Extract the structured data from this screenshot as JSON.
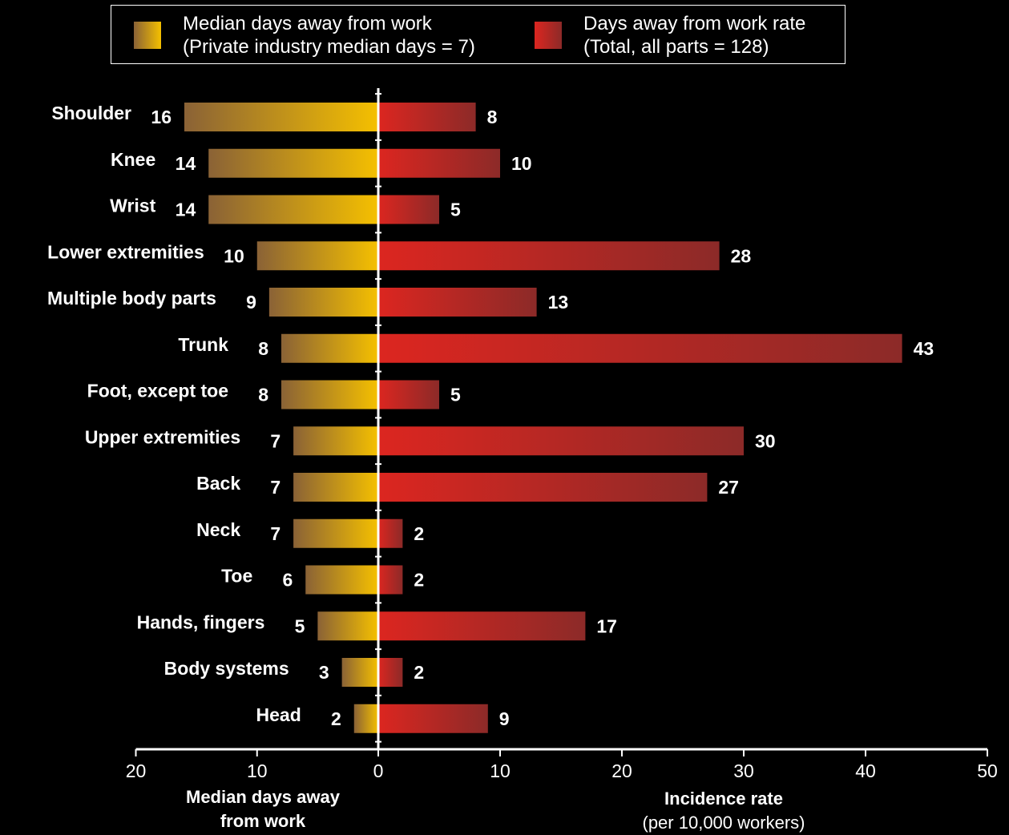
{
  "legend": [
    {
      "line1": "Median days away from work",
      "line2": "(Private industry median days = 7)"
    },
    {
      "line1": "Days away from work rate",
      "line2": "(Total, all parts = 128)"
    }
  ],
  "colors": {
    "days_gradient": [
      "#8a6236",
      "#f5c000"
    ],
    "rate_gradient": [
      "#dc2620",
      "#8c2a28"
    ],
    "background": "#000000",
    "text": "#ffffff"
  },
  "chart_data": {
    "type": "bar",
    "orientation": "horizontal",
    "categories": [
      "Shoulder",
      "Knee",
      "Wrist",
      "Lower extremities",
      "Multiple body parts",
      "Trunk",
      "Foot, except toe",
      "Upper extremities",
      "Back",
      "Neck",
      "Toe",
      "Hands, fingers",
      "Body systems",
      "Head"
    ],
    "series": [
      {
        "name": "Median days away from work",
        "values": [
          16,
          14,
          14,
          10,
          9,
          8,
          8,
          7,
          7,
          7,
          6,
          5,
          3,
          2
        ],
        "direction": "left"
      },
      {
        "name": "Days away from work rate",
        "values": [
          8,
          10,
          5,
          28,
          13,
          43,
          5,
          30,
          27,
          2,
          2,
          17,
          2,
          9
        ],
        "direction": "right"
      }
    ],
    "left_axis": {
      "range": [
        0,
        20
      ],
      "ticks": [
        20,
        10,
        0
      ],
      "label_line1": "Median days away",
      "label_line2": "from work"
    },
    "right_axis": {
      "range": [
        0,
        50
      ],
      "ticks": [
        10,
        20,
        30,
        40,
        50
      ],
      "label_line1": "Incidence rate",
      "label_line2": "(per 10,000 workers)"
    },
    "grid": false,
    "legend_position": "top"
  }
}
